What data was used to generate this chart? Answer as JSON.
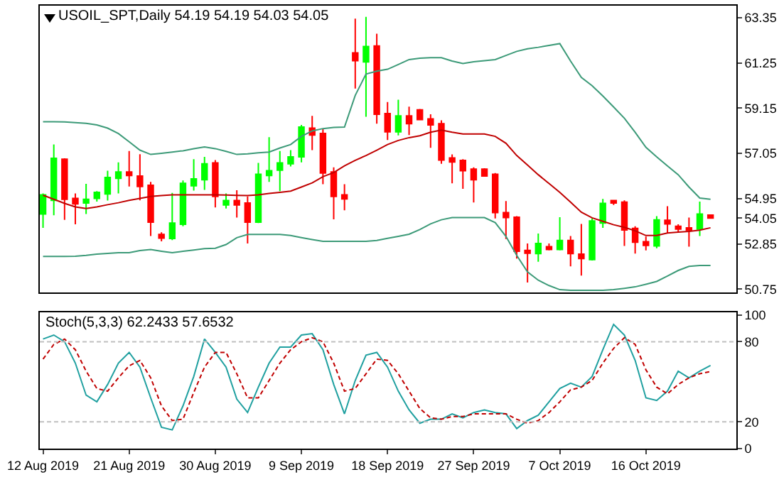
{
  "chart_data": [
    {
      "type": "candlestick",
      "title": "USOIL_SPT,Daily 54.19 54.19 54.03 54.05",
      "categories": [
        null,
        null,
        null,
        null,
        null,
        null,
        null,
        null,
        null,
        null,
        null,
        null,
        null,
        null,
        null,
        null,
        null,
        null,
        null,
        null,
        null,
        null,
        null,
        null,
        null,
        null,
        null,
        null,
        null,
        null,
        null,
        null,
        null,
        null,
        null,
        null,
        null,
        null,
        null,
        null,
        null,
        null,
        null,
        null,
        null,
        null,
        null,
        null,
        null,
        null,
        null,
        null,
        null,
        null,
        null,
        null,
        null,
        null,
        null,
        null,
        null,
        null,
        null
      ],
      "ohlc": [
        [
          54.24,
          55.19,
          53.6,
          55.13
        ],
        [
          54.87,
          57.46,
          54.18,
          56.82
        ],
        [
          56.78,
          56.82,
          53.97,
          54.92
        ],
        [
          54.96,
          55.19,
          53.76,
          54.71
        ],
        [
          54.75,
          55.64,
          54.24,
          54.92
        ],
        [
          54.96,
          55.3,
          54.81,
          55.24
        ],
        [
          55.17,
          56.25,
          54.86,
          55.93
        ],
        [
          55.89,
          56.63,
          55.19,
          56.19
        ],
        [
          56.19,
          57.16,
          55.51,
          56.02
        ],
        [
          56.0,
          57.01,
          54.87,
          55.51
        ],
        [
          55.57,
          55.73,
          53.22,
          53.86
        ],
        [
          53.29,
          53.39,
          52.97,
          53.12
        ],
        [
          53.1,
          55.22,
          53.03,
          53.82
        ],
        [
          53.76,
          55.79,
          53.67,
          55.66
        ],
        [
          55.55,
          56.78,
          55.32,
          55.87
        ],
        [
          55.83,
          56.89,
          55.36,
          56.57
        ],
        [
          56.61,
          56.74,
          54.54,
          55.05
        ],
        [
          54.66,
          55.19,
          54.49,
          54.86
        ],
        [
          54.86,
          55.34,
          54.07,
          54.66
        ],
        [
          54.75,
          55.05,
          52.87,
          53.86
        ],
        [
          53.86,
          56.61,
          53.82,
          56.08
        ],
        [
          56.02,
          57.8,
          55.73,
          56.25
        ],
        [
          56.27,
          57.16,
          55.3,
          56.61
        ],
        [
          56.57,
          57.2,
          56.44,
          56.89
        ],
        [
          56.89,
          58.37,
          56.63,
          58.27
        ],
        [
          58.22,
          58.79,
          57.2,
          57.9
        ],
        [
          57.97,
          58.2,
          55.62,
          56.14
        ],
        [
          56.19,
          56.4,
          53.99,
          55.05
        ],
        [
          55.13,
          55.62,
          54.41,
          54.94
        ],
        [
          61.71,
          63.3,
          60.06,
          61.35
        ],
        [
          61.29,
          63.38,
          58.75,
          62.01
        ],
        [
          62.03,
          62.6,
          58.43,
          58.86
        ],
        [
          58.9,
          59.43,
          57.67,
          58.05
        ],
        [
          58.05,
          59.54,
          57.88,
          58.79
        ],
        [
          58.79,
          59.22,
          57.9,
          58.43
        ],
        [
          59.07,
          59.11,
          58.58,
          58.62
        ],
        [
          58.65,
          58.86,
          57.31,
          58.37
        ],
        [
          58.43,
          58.58,
          56.57,
          56.74
        ],
        [
          56.84,
          57.0,
          55.66,
          56.65
        ],
        [
          56.72,
          56.78,
          55.41,
          56.25
        ],
        [
          56.32,
          56.4,
          54.77,
          55.83
        ],
        [
          56.32,
          56.36,
          55.98,
          56.0
        ],
        [
          56.08,
          56.14,
          54.03,
          54.3
        ],
        [
          54.3,
          54.84,
          53.08,
          54.07
        ],
        [
          54.09,
          54.14,
          52.17,
          52.51
        ],
        [
          52.55,
          52.87,
          51.06,
          52.42
        ],
        [
          52.4,
          53.33,
          52.02,
          52.87
        ],
        [
          52.72,
          52.87,
          52.55,
          52.59
        ],
        [
          52.59,
          54.09,
          52.55,
          53.01
        ],
        [
          53.01,
          53.22,
          51.81,
          52.4
        ],
        [
          52.38,
          53.78,
          51.38,
          52.17
        ],
        [
          52.12,
          54.03,
          52.08,
          53.92
        ],
        [
          53.82,
          54.94,
          53.6,
          54.73
        ],
        [
          54.86,
          54.87,
          54.66,
          54.75
        ],
        [
          54.79,
          54.87,
          52.76,
          53.5
        ],
        [
          53.57,
          53.67,
          52.4,
          52.93
        ],
        [
          52.95,
          53.19,
          52.55,
          52.78
        ],
        [
          52.76,
          54.14,
          52.65,
          53.97
        ],
        [
          53.95,
          54.6,
          53.35,
          53.78
        ],
        [
          53.67,
          53.76,
          53.39,
          53.54
        ],
        [
          53.6,
          54.07,
          52.72,
          53.48
        ],
        [
          53.54,
          54.81,
          53.22,
          54.24
        ],
        [
          54.19,
          54.19,
          54.03,
          54.05
        ]
      ],
      "colors": [
        "#00ff00",
        "#00ff00",
        "#ff0000",
        "#ff0000",
        "#00ff00",
        "#00ff00",
        "#00ff00",
        "#00ff00",
        "#ff0000",
        "#ff0000",
        "#ff0000",
        "#ff0000",
        "#00ff00",
        "#00ff00",
        "#00ff00",
        "#00ff00",
        "#ff0000",
        "#00ff00",
        "#ff0000",
        "#ff0000",
        "#00ff00",
        "#00ff00",
        "#00ff00",
        "#00ff00",
        "#00ff00",
        "#ff0000",
        "#ff0000",
        "#ff0000",
        "#ff0000",
        "#ff0000",
        "#00ff00",
        "#ff0000",
        "#ff0000",
        "#00ff00",
        "#ff0000",
        "#ff0000",
        "#ff0000",
        "#ff0000",
        "#ff0000",
        "#ff0000",
        "#ff0000",
        "#ff0000",
        "#ff0000",
        "#ff0000",
        "#ff0000",
        "#ff0000",
        "#00ff00",
        "#ff0000",
        "#00ff00",
        "#ff0000",
        "#ff0000",
        "#00ff00",
        "#00ff00",
        "#ff0000",
        "#ff0000",
        "#ff0000",
        "#ff0000",
        "#00ff00",
        "#ff0000",
        "#ff0000",
        "#ff0000",
        "#00ff00",
        "#ff0000"
      ],
      "series": [
        {
          "type": "line",
          "color": "#3c9a78",
          "values": [
            58.52,
            58.52,
            58.51,
            58.48,
            58.44,
            58.37,
            58.22,
            57.97,
            57.59,
            57.2,
            57.0,
            57.05,
            57.11,
            57.17,
            57.27,
            57.35,
            57.27,
            57.14,
            57.0,
            57.03,
            57.08,
            57.11,
            57.3,
            57.46,
            57.84,
            58.09,
            58.2,
            58.25,
            58.27,
            59.74,
            60.73,
            60.86,
            60.95,
            61.17,
            61.4,
            61.46,
            61.49,
            61.49,
            61.33,
            61.22,
            61.3,
            61.35,
            61.4,
            61.59,
            61.78,
            61.9,
            61.97,
            62.06,
            62.14,
            61.33,
            60.57,
            60.19,
            59.71,
            59.2,
            58.68,
            58.03,
            57.33,
            56.89,
            56.47,
            56.06,
            55.49,
            54.98,
            54.92
          ]
        },
        {
          "type": "line",
          "color": "#c00000",
          "values": [
            55.11,
            54.92,
            54.73,
            54.57,
            54.49,
            54.57,
            54.67,
            54.76,
            54.87,
            54.96,
            55.05,
            55.09,
            55.13,
            55.13,
            55.13,
            55.13,
            55.13,
            55.12,
            55.1,
            55.09,
            55.13,
            55.19,
            55.24,
            55.3,
            55.49,
            55.68,
            55.97,
            56.16,
            56.47,
            56.73,
            56.95,
            57.2,
            57.46,
            57.65,
            57.78,
            57.87,
            58.03,
            58.13,
            58.03,
            57.95,
            57.95,
            57.95,
            57.84,
            57.52,
            56.95,
            56.51,
            56.06,
            55.65,
            55.24,
            54.79,
            54.32,
            54.06,
            53.9,
            53.74,
            53.62,
            53.46,
            53.24,
            53.24,
            53.36,
            53.4,
            53.43,
            53.49,
            53.6
          ]
        },
        {
          "type": "line",
          "color": "#3c9a78",
          "values": [
            52.27,
            52.27,
            52.27,
            52.28,
            52.32,
            52.38,
            52.41,
            52.44,
            52.44,
            52.54,
            52.59,
            52.51,
            52.44,
            52.51,
            52.57,
            52.63,
            52.65,
            52.82,
            53.14,
            53.29,
            53.29,
            53.29,
            53.29,
            53.24,
            53.14,
            53.05,
            52.97,
            52.97,
            52.97,
            52.97,
            52.97,
            53.01,
            53.11,
            53.2,
            53.3,
            53.52,
            53.78,
            53.97,
            54.07,
            54.07,
            54.07,
            54.07,
            53.84,
            53.2,
            52.32,
            51.55,
            51.17,
            50.92,
            50.73,
            50.7,
            50.7,
            50.7,
            50.7,
            50.73,
            50.79,
            50.86,
            50.98,
            51.11,
            51.36,
            51.62,
            51.81,
            51.85,
            51.85
          ]
        }
      ],
      "ylim": [
        50.6,
        63.9
      ],
      "yticks": [
        50.75,
        52.85,
        {
          "value": 54.05,
          "label": "54.05"
        },
        54.95,
        57.05,
        59.15,
        61.25,
        63.35
      ],
      "tick_labels": "y"
    },
    {
      "type": "line",
      "title": "Stoch(5,3,3) 62.2433 57.6532",
      "categories": [
        "12 Aug 2019",
        null,
        null,
        null,
        null,
        null,
        null,
        null,
        "21 Aug 2019",
        null,
        null,
        null,
        null,
        null,
        null,
        null,
        "30 Aug 2019",
        null,
        null,
        null,
        null,
        null,
        null,
        null,
        "9 Sep 2019",
        null,
        null,
        null,
        null,
        null,
        null,
        null,
        "18 Sep 2019",
        null,
        null,
        null,
        null,
        null,
        null,
        null,
        "27 Sep 2019",
        null,
        null,
        null,
        null,
        null,
        null,
        null,
        "7 Oct 2019",
        null,
        null,
        null,
        null,
        null,
        null,
        null,
        "16 Oct 2019",
        null,
        null,
        null,
        null,
        null,
        null
      ],
      "series": [
        {
          "color": "#20a0a0",
          "line_style": "solid",
          "values": [
            82,
            85,
            80,
            64,
            40,
            35,
            48,
            64,
            72,
            61,
            38,
            16,
            14,
            32,
            54,
            82,
            72,
            61,
            37,
            27,
            46,
            64,
            76,
            76,
            85,
            86,
            74,
            48,
            26,
            51,
            70,
            72,
            61,
            43,
            29,
            19,
            22,
            22,
            26,
            23,
            27,
            29,
            27,
            26,
            15,
            21,
            25,
            35,
            45,
            49,
            46,
            54,
            74,
            93,
            85,
            66,
            38,
            36,
            43,
            58,
            53,
            58,
            62.24
          ]
        },
        {
          "color": "#c00000",
          "line_style": "dashed",
          "values": [
            67,
            78,
            82,
            74,
            58,
            45,
            43,
            53,
            62,
            66,
            53,
            32,
            21,
            22,
            42,
            61,
            72,
            72,
            56,
            38,
            38,
            51,
            64,
            74,
            80,
            83,
            80,
            64,
            43,
            45,
            56,
            67,
            66,
            56,
            43,
            30,
            23,
            22,
            24,
            24,
            26,
            26,
            26,
            26,
            22,
            19,
            21,
            27,
            35,
            44,
            46,
            51,
            64,
            75,
            83,
            78,
            59,
            46,
            41,
            48,
            53,
            56,
            57.65
          ]
        }
      ],
      "ylim": [
        0,
        102
      ],
      "yticks": [
        0,
        20,
        80,
        100
      ],
      "ref_lines": [
        {
          "axis": "y",
          "value": 80,
          "color": "#c0c0c0",
          "line_style": "dashed"
        },
        {
          "axis": "y",
          "value": 20,
          "color": "#c0c0c0",
          "line_style": "dashed"
        }
      ]
    }
  ]
}
